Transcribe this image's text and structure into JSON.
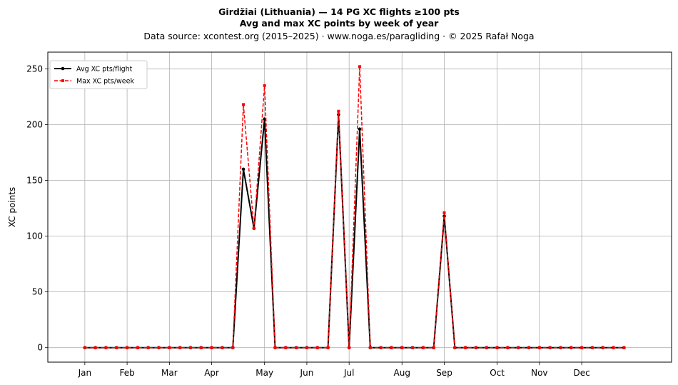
{
  "chart_data": {
    "type": "line",
    "title": "Girdžiai (Lithuania)  —  14 PG XC flights ≥100 pts",
    "subtitle": "Avg and max XC points by week of year",
    "source": "Data source: xcontest.org (2015–2025)  ·  www.noga.es/paragliding  ·  © 2025 Rafał Noga",
    "xlabel": "",
    "ylabel": "XC points",
    "x_ticks": [
      "Jan",
      "Feb",
      "Mar",
      "Apr",
      "May",
      "Jun",
      "Jul",
      "Aug",
      "Sep",
      "Oct",
      "Nov",
      "Dec"
    ],
    "x_tick_weeks": [
      1,
      5,
      9,
      13,
      18,
      22,
      26,
      31,
      35,
      40,
      44,
      48
    ],
    "y_ticks": [
      0,
      50,
      100,
      150,
      200,
      250
    ],
    "ylim": [
      -13,
      265
    ],
    "xlim": [
      -2.5,
      56.5
    ],
    "grid": true,
    "legend_position": "top-left",
    "weeks": [
      1,
      2,
      3,
      4,
      5,
      6,
      7,
      8,
      9,
      10,
      11,
      12,
      13,
      14,
      15,
      16,
      17,
      18,
      19,
      20,
      21,
      22,
      23,
      24,
      25,
      26,
      27,
      28,
      29,
      30,
      31,
      32,
      33,
      34,
      35,
      36,
      37,
      38,
      39,
      40,
      41,
      42,
      43,
      44,
      45,
      46,
      47,
      48,
      49,
      50,
      51,
      52
    ],
    "series": [
      {
        "name": "Avg XC pts/flight",
        "color": "#000000",
        "style": "solid",
        "marker": "circle",
        "values": [
          0,
          0,
          0,
          0,
          0,
          0,
          0,
          0,
          0,
          0,
          0,
          0,
          0,
          0,
          0,
          160,
          107,
          205,
          0,
          0,
          0,
          0,
          0,
          0,
          209,
          0,
          196,
          0,
          0,
          0,
          0,
          0,
          0,
          0,
          118,
          0,
          0,
          0,
          0,
          0,
          0,
          0,
          0,
          0,
          0,
          0,
          0,
          0,
          0,
          0,
          0,
          0
        ]
      },
      {
        "name": "Max XC pts/week",
        "color": "#ff0000",
        "style": "dashed",
        "marker": "square",
        "values": [
          0,
          0,
          0,
          0,
          0,
          0,
          0,
          0,
          0,
          0,
          0,
          0,
          0,
          0,
          0,
          218,
          107,
          235,
          0,
          0,
          0,
          0,
          0,
          0,
          212,
          0,
          252,
          0,
          0,
          0,
          0,
          0,
          0,
          0,
          121,
          0,
          0,
          0,
          0,
          0,
          0,
          0,
          0,
          0,
          0,
          0,
          0,
          0,
          0,
          0,
          0,
          0
        ]
      }
    ]
  }
}
